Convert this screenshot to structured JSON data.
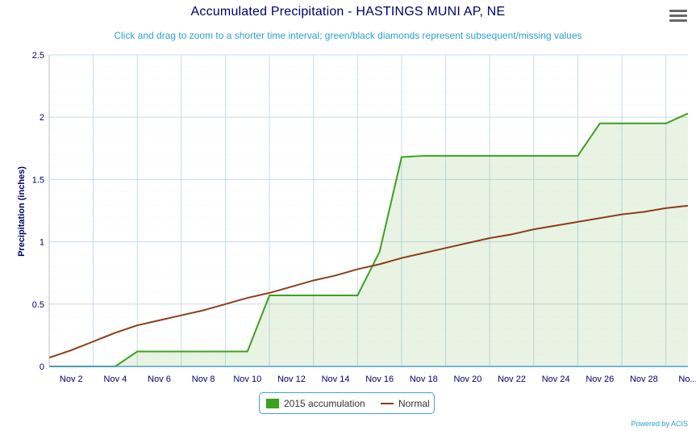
{
  "chart_data": {
    "type": "line",
    "title": "Accumulated Precipitation - HASTINGS MUNI AP, NE",
    "subtitle": "Click and drag to zoom to a shorter time interval; green/black diamonds represent subsequent/missing values",
    "ylabel": "Precipitation (inches)",
    "xlabel": "",
    "ylim": [
      0,
      2.5
    ],
    "y_ticks": [
      "0",
      "0.5",
      "1",
      "1.5",
      "2",
      "2.5"
    ],
    "x_tick_labels": [
      "Nov 2",
      "Nov 4",
      "Nov 6",
      "Nov 8",
      "Nov 10",
      "Nov 12",
      "Nov 14",
      "Nov 16",
      "Nov 18",
      "Nov 20",
      "Nov 22",
      "Nov 24",
      "Nov 26",
      "Nov 28",
      "No..."
    ],
    "x": [
      1,
      2,
      3,
      4,
      5,
      6,
      7,
      8,
      9,
      10,
      11,
      12,
      13,
      14,
      15,
      16,
      17,
      18,
      19,
      20,
      21,
      22,
      23,
      24,
      25,
      26,
      27,
      28,
      29,
      30
    ],
    "series": [
      {
        "name": "2015 accumulation",
        "type": "area",
        "color": "#3ea021",
        "values": [
          0,
          0,
          0,
          0,
          0.12,
          0.12,
          0.12,
          0.12,
          0.12,
          0.12,
          0.57,
          0.57,
          0.57,
          0.57,
          0.57,
          0.92,
          1.68,
          1.69,
          1.69,
          1.69,
          1.69,
          1.69,
          1.69,
          1.69,
          1.69,
          1.95,
          1.95,
          1.95,
          1.95,
          2.03
        ]
      },
      {
        "name": "Normal",
        "type": "line",
        "color": "#8b3e1a",
        "values": [
          0.07,
          0.13,
          0.2,
          0.27,
          0.33,
          0.37,
          0.41,
          0.45,
          0.5,
          0.55,
          0.59,
          0.64,
          0.69,
          0.73,
          0.78,
          0.82,
          0.87,
          0.91,
          0.95,
          0.99,
          1.03,
          1.06,
          1.1,
          1.13,
          1.16,
          1.19,
          1.22,
          1.24,
          1.27,
          1.29
        ]
      }
    ],
    "grid": true,
    "legend_position": "bottom-center"
  },
  "ui": {
    "menu_icon": "hamburger-menu-icon",
    "credits": "Powered by ACIS"
  }
}
